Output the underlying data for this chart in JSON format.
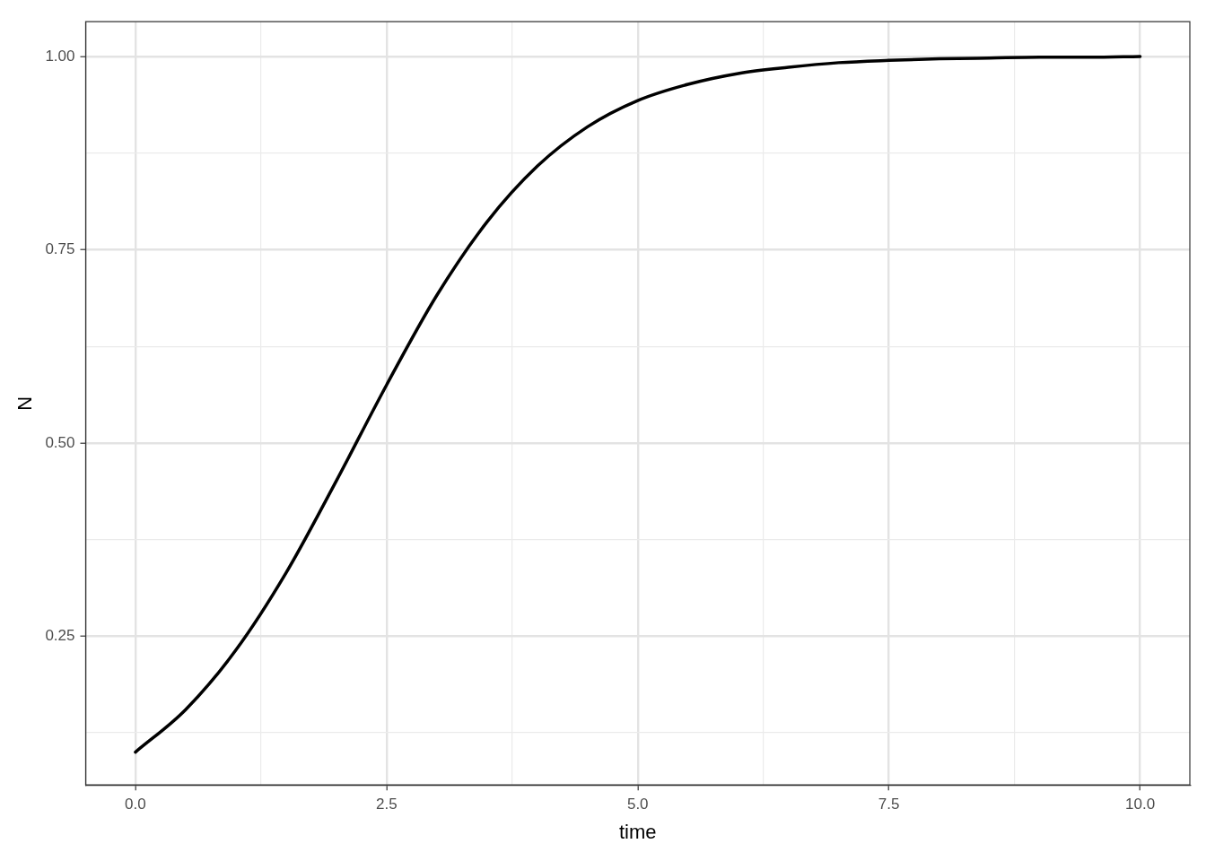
{
  "chart_data": {
    "type": "line",
    "xlabel": "time",
    "ylabel": "N",
    "x": [
      0,
      0.5,
      1,
      1.5,
      2,
      2.5,
      3,
      3.5,
      4,
      4.5,
      5,
      5.5,
      6,
      6.5,
      7,
      7.5,
      8,
      8.5,
      9,
      9.5,
      10
    ],
    "series": [
      {
        "color": "#000000",
        "values": [
          0.1,
          0.155,
          0.232,
          0.332,
          0.451,
          0.575,
          0.691,
          0.786,
          0.858,
          0.909,
          0.943,
          0.964,
          0.978,
          0.986,
          0.992,
          0.995,
          0.997,
          0.998,
          0.999,
          0.999,
          1.0
        ]
      }
    ],
    "xlim": [
      -0.495,
      10.495
    ],
    "ylim": [
      0.0575,
      1.045
    ],
    "xticks": [
      {
        "value": 0,
        "label": "0.0"
      },
      {
        "value": 1.25,
        "label": null
      },
      {
        "value": 2.5,
        "label": "2.5"
      },
      {
        "value": 3.75,
        "label": null
      },
      {
        "value": 5,
        "label": "5.0"
      },
      {
        "value": 6.25,
        "label": null
      },
      {
        "value": 7.5,
        "label": "7.5"
      },
      {
        "value": 8.75,
        "label": null
      },
      {
        "value": 10,
        "label": "10.0"
      }
    ],
    "yticks": [
      {
        "value": 0.125,
        "label": null
      },
      {
        "value": 0.25,
        "label": "0.25"
      },
      {
        "value": 0.375,
        "label": null
      },
      {
        "value": 0.5,
        "label": "0.50"
      },
      {
        "value": 0.625,
        "label": null
      },
      {
        "value": 0.75,
        "label": "0.75"
      },
      {
        "value": 0.875,
        "label": null
      },
      {
        "value": 1,
        "label": "1.00"
      }
    ],
    "grid": true,
    "legend": false,
    "marker": "none",
    "line_style": "solid"
  }
}
